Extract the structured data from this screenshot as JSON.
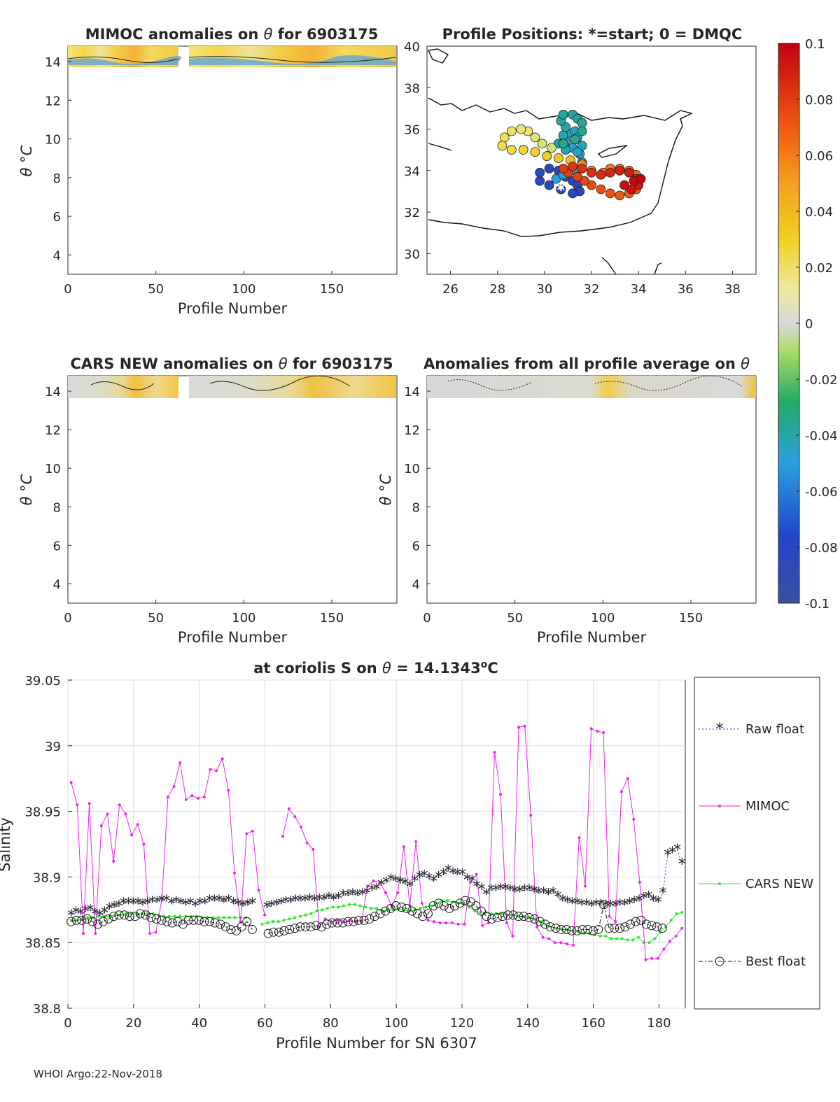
{
  "footer": "WHOI Argo:22-Nov-2018",
  "colors": {
    "raw": "#2222ee",
    "mimoc": "#ee22ee",
    "cars": "#22ee22",
    "best": "#111111",
    "grid": "#dddddd",
    "axis": "#262626"
  },
  "panels": {
    "mimoc": {
      "title_a": "MIMOC anomalies on ",
      "title_b": " for 6903175",
      "xlabel": "Profile Number",
      "ylabel": "θ °C"
    },
    "positions": {
      "title": "Profile Positions: *=start; 0 = DMQC"
    },
    "cars": {
      "title_a": "CARS NEW anomalies on ",
      "title_b": " for 6903175",
      "xlabel": "Profile Number",
      "ylabel": "θ °C"
    },
    "allavg": {
      "title_a": "Anomalies from all profile average on ",
      "xlabel": "Profile Number",
      "ylabel": "θ °C"
    }
  },
  "theta_symbol": "θ",
  "chart_data": [
    {
      "id": "mimoc_anom",
      "type": "heatmap",
      "title": "MIMOC anomalies on θ for 6903175",
      "xlabel": "Profile Number",
      "ylabel": "θ °C",
      "xlim": [
        0,
        187
      ],
      "ylim": [
        3,
        14.8
      ],
      "xticks": [
        "0",
        "50",
        "100",
        "150"
      ],
      "yticks": [
        "4",
        "6",
        "8",
        "10",
        "12",
        "14"
      ]
    },
    {
      "id": "positions",
      "type": "scatter",
      "title": "Profile Positions: *=start; 0 = DMQC",
      "xlim": [
        25,
        39
      ],
      "ylim": [
        29,
        40
      ],
      "xticks": [
        "26",
        "28",
        "30",
        "32",
        "34",
        "36",
        "38"
      ],
      "yticks": [
        "30",
        "32",
        "34",
        "36",
        "38",
        "40"
      ],
      "start": [
        30.7,
        33.1
      ],
      "track": [
        [
          30.7,
          33.1
        ],
        [
          30.2,
          33.3
        ],
        [
          29.8,
          33.5
        ],
        [
          29.8,
          33.9
        ],
        [
          30.2,
          34.1
        ],
        [
          30.6,
          34.0
        ],
        [
          30.9,
          33.7
        ],
        [
          31.2,
          33.5
        ],
        [
          31.4,
          33.3
        ],
        [
          31.5,
          33.0
        ],
        [
          31.2,
          32.9
        ],
        [
          30.7,
          33.1
        ],
        [
          30.5,
          33.6
        ],
        [
          30.8,
          33.8
        ],
        [
          31.3,
          34.0
        ],
        [
          31.6,
          34.4
        ],
        [
          31.5,
          34.8
        ],
        [
          31.2,
          35.1
        ],
        [
          30.9,
          35.4
        ],
        [
          31.0,
          35.8
        ],
        [
          31.3,
          35.9
        ],
        [
          31.4,
          35.6
        ],
        [
          31.6,
          35.2
        ],
        [
          31.4,
          34.9
        ],
        [
          30.9,
          35.0
        ],
        [
          30.6,
          35.3
        ],
        [
          30.8,
          35.7
        ],
        [
          30.9,
          36.1
        ],
        [
          30.7,
          36.4
        ],
        [
          30.8,
          36.7
        ],
        [
          31.2,
          36.7
        ],
        [
          31.4,
          36.5
        ],
        [
          31.6,
          36.3
        ],
        [
          31.6,
          35.9
        ],
        [
          31.3,
          35.5
        ],
        [
          30.8,
          35.3
        ],
        [
          30.3,
          35.1
        ],
        [
          29.9,
          35.3
        ],
        [
          29.6,
          35.6
        ],
        [
          29.3,
          35.9
        ],
        [
          29.0,
          36.0
        ],
        [
          28.6,
          35.9
        ],
        [
          28.3,
          35.6
        ],
        [
          28.2,
          35.2
        ],
        [
          28.6,
          35.0
        ],
        [
          29.1,
          35.0
        ],
        [
          29.6,
          34.9
        ],
        [
          30.1,
          34.7
        ],
        [
          30.6,
          34.6
        ],
        [
          31.1,
          34.5
        ],
        [
          31.6,
          34.3
        ],
        [
          32.0,
          34.0
        ],
        [
          32.5,
          33.9
        ],
        [
          32.8,
          34.1
        ],
        [
          33.2,
          34.1
        ],
        [
          33.6,
          34.0
        ],
        [
          33.9,
          33.8
        ],
        [
          34.0,
          33.5
        ],
        [
          33.9,
          33.1
        ],
        [
          33.6,
          32.9
        ],
        [
          33.2,
          32.8
        ],
        [
          32.8,
          32.9
        ],
        [
          32.4,
          33.1
        ],
        [
          32.0,
          33.3
        ],
        [
          31.7,
          33.5
        ],
        [
          31.4,
          33.7
        ],
        [
          31.0,
          33.9
        ],
        [
          30.8,
          34.1
        ],
        [
          31.2,
          34.2
        ],
        [
          31.6,
          34.1
        ],
        [
          32.0,
          33.9
        ],
        [
          32.4,
          33.8
        ],
        [
          32.8,
          33.9
        ],
        [
          33.2,
          34.0
        ],
        [
          33.6,
          33.9
        ],
        [
          33.9,
          33.6
        ],
        [
          34.0,
          33.3
        ],
        [
          33.7,
          33.1
        ],
        [
          33.4,
          33.3
        ],
        [
          33.8,
          33.5
        ],
        [
          34.1,
          33.6
        ]
      ]
    },
    {
      "id": "colorbar",
      "type": "colorbar",
      "ticks": [
        "0.1",
        "0.08",
        "0.06",
        "0.04",
        "0.02",
        "0",
        "-0.02",
        "-0.04",
        "-0.06",
        "-0.08",
        "-0.1"
      ],
      "range": [
        -0.1,
        0.1
      ]
    },
    {
      "id": "cars_anom",
      "type": "heatmap",
      "title": "CARS NEW anomalies on θ for 6903175",
      "xlabel": "Profile Number",
      "ylabel": "θ °C",
      "xlim": [
        0,
        187
      ],
      "ylim": [
        3,
        14.8
      ],
      "xticks": [
        "0",
        "50",
        "100",
        "150"
      ],
      "yticks": [
        "4",
        "6",
        "8",
        "10",
        "12",
        "14"
      ]
    },
    {
      "id": "allavg_anom",
      "type": "heatmap",
      "title": "Anomalies from all profile average on θ",
      "xlabel": "Profile Number",
      "ylabel": "θ °C",
      "xlim": [
        0,
        187
      ],
      "ylim": [
        3,
        14.8
      ],
      "xticks": [
        "0",
        "50",
        "100",
        "150"
      ],
      "yticks": [
        "4",
        "6",
        "8",
        "10",
        "12",
        "14"
      ]
    },
    {
      "id": "salinity_series",
      "type": "line",
      "title": "at coriolis S on θ = 14.1343°C",
      "title_parts": [
        "at coriolis S on ",
        "θ",
        " = 14.1343",
        "o",
        "C"
      ],
      "xlabel": "Profile Number for SN 6307",
      "ylabel": "Salinity",
      "xlim": [
        0,
        188
      ],
      "ylim": [
        38.8,
        39.05
      ],
      "xticks": [
        "0",
        "20",
        "40",
        "60",
        "80",
        "100",
        "120",
        "140",
        "160",
        "180"
      ],
      "yticks": [
        "38.8",
        "38.85",
        "38.9",
        "38.95",
        "39",
        "39.05"
      ],
      "legend": [
        "Raw float",
        "MIMOC",
        "CARS NEW",
        "Best float"
      ],
      "legend_position": "right",
      "series": [
        {
          "name": "Raw float",
          "marker": "*",
          "x_start": 1,
          "x_end": 187,
          "values": [
            38.871,
            38.873,
            38.872,
            38.874,
            38.875,
            38.872,
            38.871,
            38.873,
            38.876,
            38.877,
            38.878,
            38.88,
            38.88,
            38.88,
            38.88,
            38.879,
            38.88,
            38.881,
            38.881,
            38.882,
            38.882,
            38.88,
            38.881,
            38.88,
            38.879,
            38.88,
            38.878,
            38.88,
            38.88,
            38.882,
            38.882,
            38.882,
            38.881,
            38.882,
            38.88,
            38.879,
            38.878,
            38.879,
            38.88,
            null,
            null,
            38.877,
            38.878,
            38.879,
            38.88,
            38.881,
            38.881,
            38.882,
            38.882,
            38.882,
            38.883,
            38.882,
            38.883,
            38.883,
            38.884,
            38.883,
            38.884,
            38.886,
            38.886,
            38.887,
            38.886,
            38.887,
            38.888,
            38.89,
            38.891,
            38.894,
            38.896,
            38.898,
            38.897,
            38.896,
            38.895,
            38.893,
            38.897,
            38.9,
            38.901,
            38.899,
            38.897,
            38.9,
            38.902,
            38.905,
            38.903,
            38.902,
            38.902,
            38.898,
            38.897,
            38.893,
            38.891,
            38.887,
            38.89,
            38.89,
            38.891,
            38.891,
            38.89,
            38.889,
            38.889,
            38.89,
            38.89,
            38.889,
            38.888,
            38.888,
            38.887,
            38.888,
            38.885,
            38.882,
            38.881,
            38.88,
            38.88,
            38.879,
            38.879,
            38.878,
            38.879,
            38.879,
            38.878,
            38.878,
            38.878,
            38.879,
            38.879,
            38.88,
            38.881,
            38.882,
            38.884,
            38.885,
            38.882,
            38.881,
            38.888,
            38.917,
            38.919,
            38.921,
            38.91
          ]
        },
        {
          "name": "MIMOC",
          "marker": ".",
          "x_start": 1,
          "x_end": 187,
          "values": [
            38.972,
            38.955,
            38.857,
            38.956,
            38.857,
            38.939,
            38.948,
            38.912,
            38.955,
            38.948,
            38.932,
            38.94,
            38.925,
            38.857,
            38.858,
            38.883,
            38.961,
            38.969,
            38.987,
            38.959,
            38.962,
            38.96,
            38.961,
            38.982,
            38.981,
            38.99,
            38.966,
            38.903,
            38.866,
            38.933,
            38.935,
            38.89,
            38.871,
            null,
            null,
            38.931,
            38.952,
            38.946,
            38.938,
            38.926,
            38.921,
            38.862,
            38.868,
            38.866,
            38.867,
            38.866,
            38.867,
            38.866,
            38.866,
            38.893,
            38.897,
            38.896,
            38.888,
            38.878,
            38.888,
            38.923,
            38.878,
            38.927,
            38.88,
            38.867,
            38.866,
            38.865,
            38.865,
            38.865,
            38.864,
            38.864,
            38.896,
            38.902,
            38.863,
            38.865,
            38.995,
            38.963,
            38.865,
            38.855,
            39.014,
            39.015,
            38.947,
            38.862,
            38.854,
            38.853,
            38.85,
            38.85,
            38.849,
            38.848,
            38.93,
            38.893,
            39.013,
            39.011,
            39.01,
            38.87,
            38.866,
            38.965,
            38.975,
            38.944,
            38.896,
            38.837,
            38.838,
            38.838,
            38.845,
            38.851,
            38.855,
            38.861
          ]
        },
        {
          "name": "CARS NEW",
          "marker": ".",
          "x_start": 1,
          "x_end": 187,
          "values": [
            38.867,
            38.867,
            38.868,
            38.869,
            38.869,
            38.87,
            38.87,
            38.87,
            38.871,
            38.871,
            38.872,
            38.872,
            38.872,
            38.872,
            38.872,
            38.872,
            38.871,
            38.87,
            38.87,
            38.87,
            38.87,
            38.87,
            38.87,
            38.87,
            38.869,
            38.869,
            38.869,
            38.869,
            38.869,
            38.869,
            38.869,
            38.869,
            38.869,
            null,
            null,
            38.864,
            38.865,
            38.866,
            38.866,
            38.867,
            38.868,
            38.869,
            38.87,
            38.871,
            38.872,
            38.874,
            38.875,
            38.876,
            38.877,
            38.877,
            38.878,
            38.879,
            38.879,
            38.878,
            38.877,
            38.876,
            38.876,
            38.874,
            38.875,
            38.875,
            38.876,
            38.875,
            38.874,
            38.875,
            38.876,
            38.877,
            38.878,
            38.88,
            38.882,
            38.882,
            38.881,
            38.88,
            38.879,
            38.877,
            38.874,
            38.873,
            38.873,
            38.872,
            38.872,
            38.872,
            38.871,
            38.871,
            38.87,
            38.87,
            38.869,
            38.868,
            38.866,
            38.864,
            38.862,
            38.861,
            38.86,
            38.86,
            38.859,
            38.858,
            38.857,
            38.857,
            38.856,
            38.855,
            38.855,
            38.853,
            38.853,
            38.853,
            38.852,
            38.852,
            38.854,
            38.85,
            38.85,
            38.853,
            38.858,
            38.862,
            38.867,
            38.872,
            38.873
          ]
        },
        {
          "name": "Best float",
          "marker": "o",
          "x_start": 1,
          "x_end": 181,
          "values": [
            38.866,
            38.867,
            38.867,
            38.868,
            38.866,
            38.864,
            38.866,
            38.868,
            38.87,
            38.871,
            38.871,
            38.87,
            38.87,
            38.872,
            38.871,
            38.869,
            38.868,
            38.867,
            38.866,
            38.865,
            38.866,
            38.864,
            38.867,
            38.867,
            38.867,
            38.866,
            38.866,
            38.865,
            38.864,
            38.862,
            38.86,
            38.859,
            38.862,
            38.866,
            38.86,
            null,
            null,
            38.857,
            38.858,
            38.858,
            38.859,
            38.86,
            38.861,
            38.862,
            38.862,
            38.862,
            38.863,
            38.862,
            38.864,
            38.865,
            38.865,
            38.865,
            38.866,
            38.866,
            38.867,
            38.867,
            38.868,
            38.87,
            38.872,
            38.874,
            38.876,
            38.878,
            38.877,
            38.876,
            38.874,
            38.872,
            38.87,
            38.872,
            38.878,
            38.88,
            38.878,
            38.876,
            38.878,
            38.88,
            38.882,
            38.881,
            38.878,
            38.874,
            38.87,
            38.868,
            38.869,
            38.87,
            38.871,
            38.871,
            38.87,
            38.87,
            38.869,
            38.868,
            38.866,
            38.864,
            38.862,
            38.861,
            38.86,
            38.86,
            38.859,
            38.859,
            38.86,
            38.86,
            38.859,
            38.86,
            38.879,
            38.861,
            38.861,
            38.861,
            38.862,
            38.864,
            38.866,
            38.867,
            38.864,
            38.863,
            38.862,
            38.861
          ]
        }
      ]
    }
  ]
}
